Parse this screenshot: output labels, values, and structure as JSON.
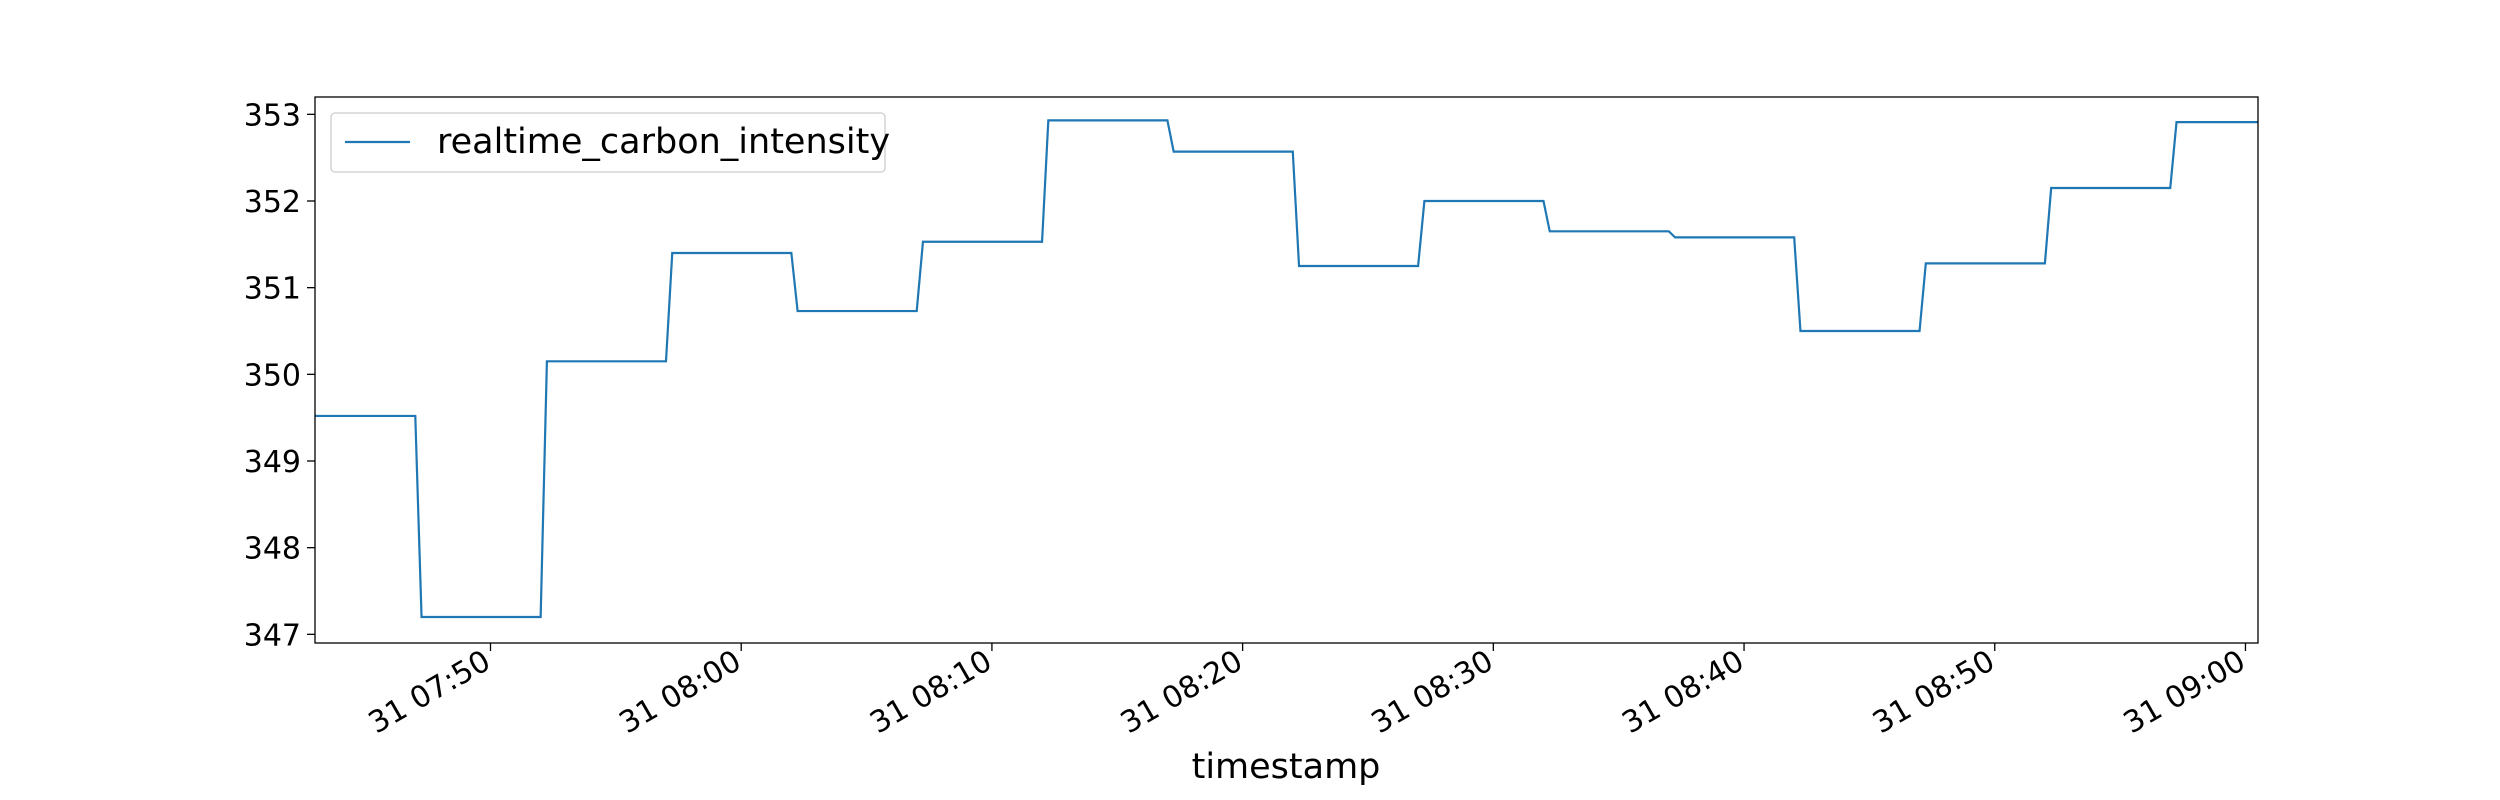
{
  "chart_data": {
    "type": "line",
    "title": "",
    "xlabel": "timestamp",
    "ylabel": "",
    "x_tick_labels": [
      "31 07:50",
      "31 08:00",
      "31 08:10",
      "31 08:20",
      "31 08:30",
      "31 08:40",
      "31 08:50",
      "31 09:00"
    ],
    "y_tick_labels": [
      "347",
      "348",
      "349",
      "350",
      "351",
      "352",
      "353"
    ],
    "xlim": [
      "07:43",
      "09:00:30"
    ],
    "ylim": [
      346.9,
      353.2
    ],
    "grid": false,
    "legend": {
      "location": "upper-left",
      "entries": [
        "realtime_carbon_intensity"
      ]
    },
    "colors": {
      "series": "#1f77b4",
      "axes": "#000000"
    },
    "series": [
      {
        "name": "realtime_carbon_intensity",
        "x": [
          "07:43",
          "07:47",
          "07:47:15",
          "07:52",
          "07:52:15",
          "07:57",
          "07:57:15",
          "08:02",
          "08:02:15",
          "08:07",
          "08:07:15",
          "08:12",
          "08:12:15",
          "08:17",
          "08:17:15",
          "08:22",
          "08:22:15",
          "08:27",
          "08:27:15",
          "08:32",
          "08:32:15",
          "08:37",
          "08:37:15",
          "08:42",
          "08:42:15",
          "08:47",
          "08:47:15",
          "08:52",
          "08:52:15",
          "08:57",
          "08:57:15",
          "09:00:30"
        ],
        "y": [
          349.52,
          349.52,
          347.2,
          347.2,
          350.15,
          350.15,
          351.4,
          351.4,
          350.73,
          350.73,
          351.53,
          351.53,
          352.93,
          352.93,
          352.57,
          352.57,
          351.25,
          351.25,
          352.0,
          352.0,
          351.65,
          351.65,
          351.58,
          351.58,
          350.5,
          350.5,
          351.28,
          351.28,
          352.15,
          352.15,
          352.91,
          352.91
        ]
      }
    ]
  }
}
